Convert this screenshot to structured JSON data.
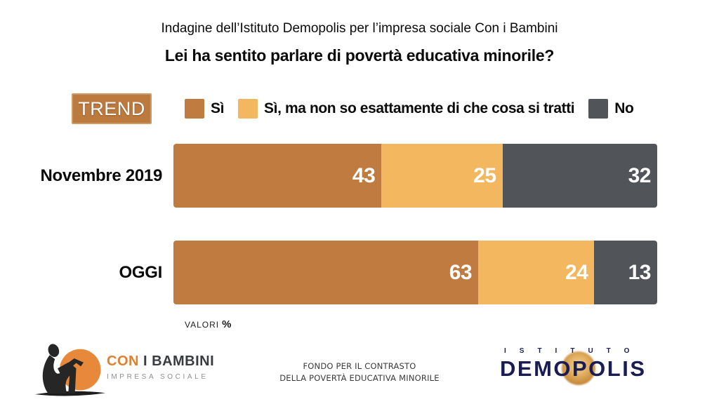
{
  "header": {
    "kicker": "Indagine dell’Istituto Demopolis per l’impresa sociale Con i Bambini",
    "question": "Lei ha sentito parlare di povertà educativa minorile?"
  },
  "trend_badge": "TREND",
  "legend": [
    {
      "label": "Sì",
      "color": "#c07c40"
    },
    {
      "label": "Sì, ma non so esattamente di che cosa si tratti",
      "color": "#f3b75f"
    },
    {
      "label": "No",
      "color": "#515458"
    }
  ],
  "chart_data": {
    "type": "bar",
    "orientation": "horizontal",
    "stacked": true,
    "unit": "%",
    "xlim": [
      0,
      100
    ],
    "categories": [
      "Novembre 2019",
      "OGGI"
    ],
    "series": [
      {
        "name": "Sì",
        "color": "#c07c40",
        "values": [
          43,
          63
        ]
      },
      {
        "name": "Sì, ma non so esattamente di che cosa si tratti",
        "color": "#f3b75f",
        "values": [
          25,
          24
        ]
      },
      {
        "name": "No",
        "color": "#515458",
        "values": [
          32,
          13
        ]
      }
    ],
    "value_labels": "inside-right",
    "note": "VALORI %"
  },
  "footnote": {
    "label": "VALORI",
    "unit": "%"
  },
  "footer": {
    "con_i_bambini": {
      "name_accent": "CON",
      "name_rest": " I BAMBINI",
      "tagline": "IMPRESA SOCIALE"
    },
    "fund_line1": "FONDO PER IL CONTRASTO",
    "fund_line2": "DELLA POVERTÀ EDUCATIVA MINORILE",
    "demopolis": {
      "istituto": "ISTITUTO",
      "name": "DEMOPOLIS"
    }
  },
  "colors": {
    "bar_dark_orange": "#c07c40",
    "bar_light_orange": "#f3b75f",
    "bar_gray": "#515458",
    "trend_badge_bg": "#bd7a3e",
    "demopolis_navy": "#1b1c52",
    "logo_orange": "#e8883a"
  }
}
